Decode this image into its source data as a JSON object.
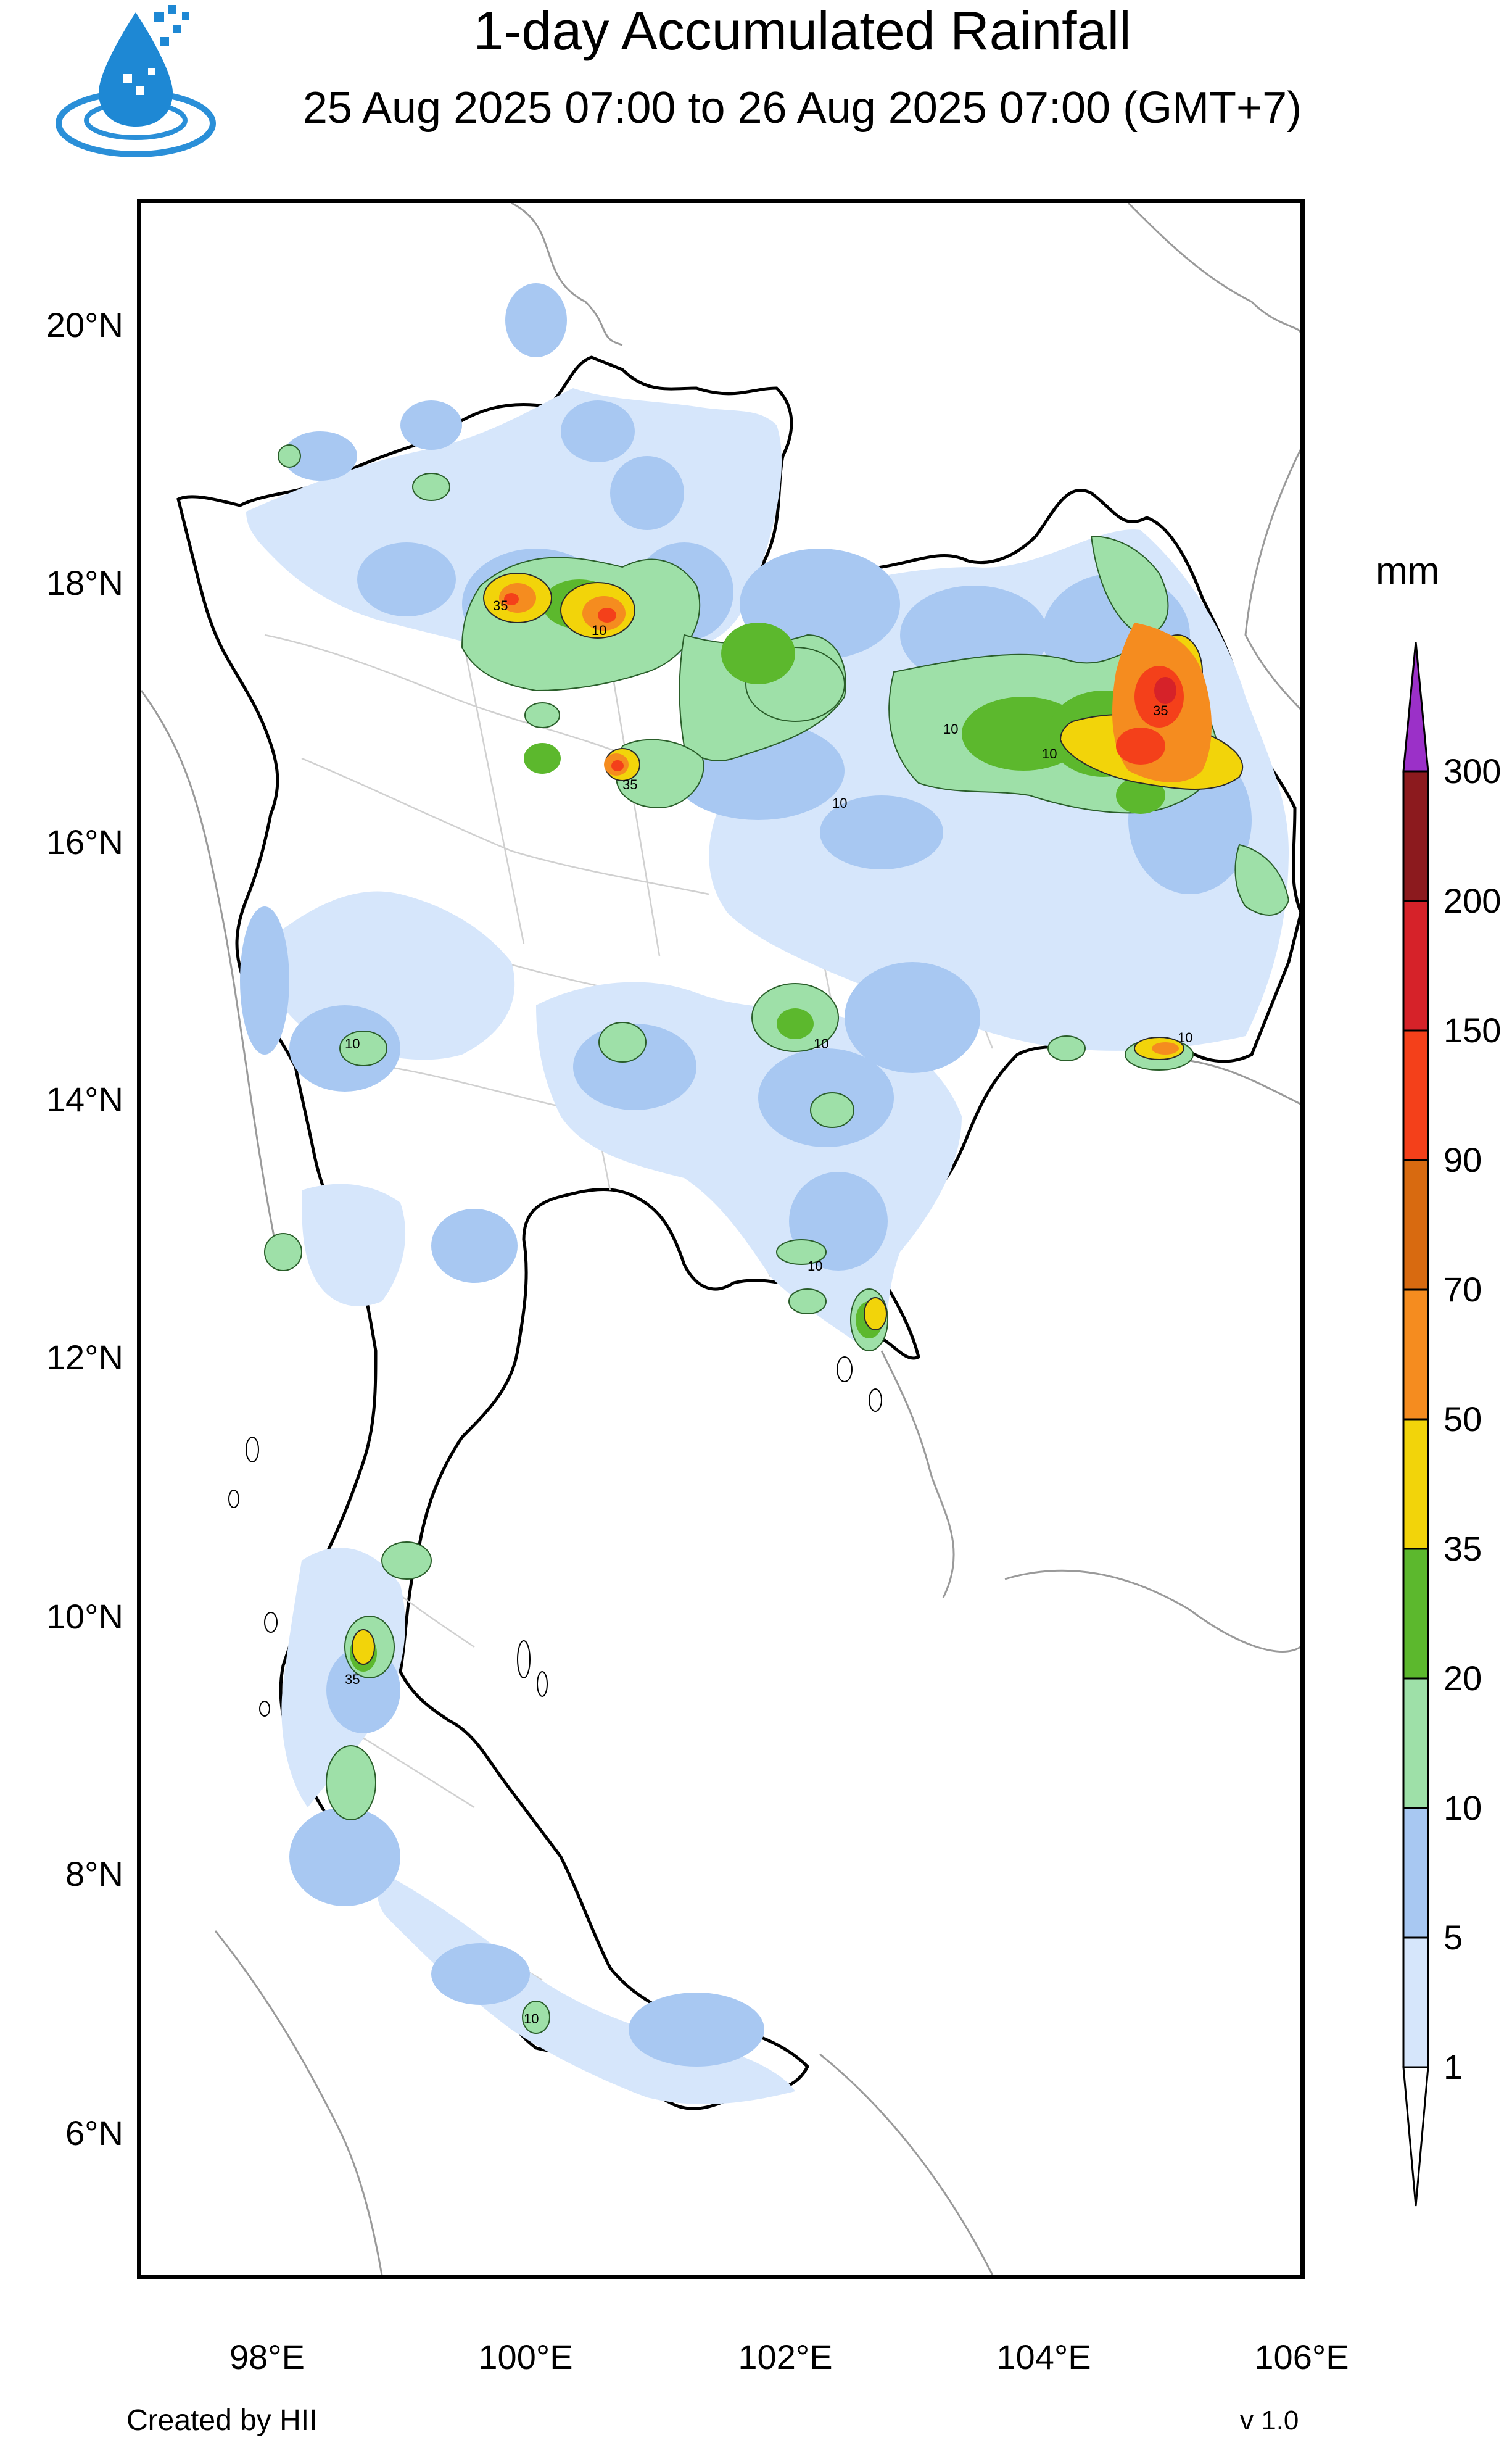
{
  "header": {
    "title": "1-day Accumulated Rainfall",
    "subtitle": "25 Aug 2025 07:00 to 26 Aug 2025 07:00 (GMT+7)"
  },
  "logo_icon": "water-drop-logo",
  "map": {
    "region": "Thailand",
    "lat_ticks": [
      "20°N",
      "18°N",
      "16°N",
      "14°N",
      "12°N",
      "10°N",
      "8°N",
      "6°N"
    ],
    "lon_ticks": [
      "98°E",
      "100°E",
      "102°E",
      "104°E",
      "106°E"
    ],
    "contour_labels": [
      "10",
      "35"
    ],
    "colors": {
      "land_border": "#000000",
      "province_border": "#cfcfcf",
      "neighbor_border": "#9a9a9a",
      "r1": "#d6e6fb",
      "r5": "#a8c8f2",
      "r10": "#9ee0a8",
      "r20": "#5cb82d",
      "r35": "#f2d40a",
      "r50": "#f58c1f",
      "r70": "#d86a10",
      "r90": "#f4401a",
      "r150": "#d62229",
      "r200": "#8c1a1e",
      "r300": "#9b30c8"
    }
  },
  "colorbar": {
    "unit": "mm",
    "levels": [
      "300",
      "200",
      "150",
      "90",
      "70",
      "50",
      "35",
      "20",
      "10",
      "5",
      "1"
    ],
    "colors": [
      "#8c1a1e",
      "#d62229",
      "#f4401a",
      "#d86a10",
      "#f58c1f",
      "#f2d40a",
      "#5cb82d",
      "#9ee0a8",
      "#a8c8f2",
      "#d6e6fb"
    ],
    "over_color": "#9b30c8",
    "under_color": "#ffffff"
  },
  "footer": {
    "credit": "Created by HII",
    "version": "v 1.0"
  }
}
